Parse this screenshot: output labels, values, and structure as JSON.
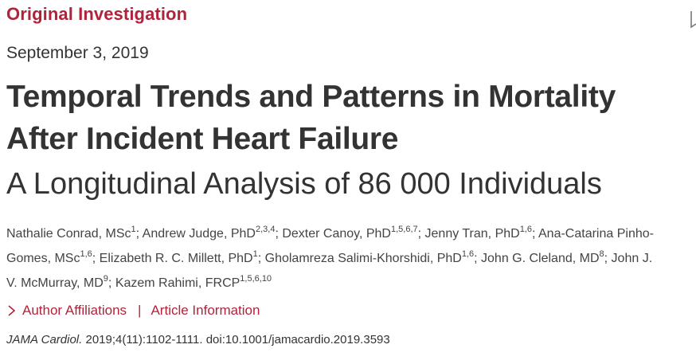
{
  "article_type": "Original Investigation",
  "date": "September 3, 2019",
  "title_line1": "Temporal Trends and Patterns in Mortality",
  "title_line2": "After Incident Heart Failure",
  "subtitle": "A Longitudinal Analysis of 86 000 Individuals",
  "authors": [
    {
      "name": "Nathalie Conrad, MSc",
      "aff": "1",
      "sep": "; "
    },
    {
      "name": "Andrew Judge, PhD",
      "aff": "2,3,4",
      "sep": "; "
    },
    {
      "name": "Dexter Canoy, PhD",
      "aff": "1,5,6,7",
      "sep": "; "
    },
    {
      "name": "Jenny Tran, PhD",
      "aff": "1,6",
      "sep": "; "
    },
    {
      "name": "Ana-Catarina Pinho-Gomes, MSc",
      "aff": "1,6",
      "sep": "; "
    },
    {
      "name": "Elizabeth R. C. Millett, PhD",
      "aff": "1",
      "sep": "; "
    },
    {
      "name": "Gholamreza Salimi-Khorshidi, PhD",
      "aff": "1,6",
      "sep": "; "
    },
    {
      "name": "John G. Cleland, MD",
      "aff": "8",
      "sep": "; "
    },
    {
      "name": "John J. V. McMurray, MD",
      "aff": "9",
      "sep": "; "
    },
    {
      "name": "Kazem Rahimi, FRCP",
      "aff": "1,5,6,10",
      "sep": ""
    }
  ],
  "links": {
    "affiliations": "Author Affiliations",
    "separator": "|",
    "article_info": "Article Information"
  },
  "citation": {
    "journal": "JAMA Cardiol.",
    "details": " 2019;4(11):1102-1111. doi:10.1001/jamacardio.2019.3593"
  },
  "colors": {
    "accent": "#b2233b",
    "text": "#333333"
  },
  "icons": {
    "link_chevron": "chevron-right-icon",
    "corner": "bookmark-icon"
  }
}
